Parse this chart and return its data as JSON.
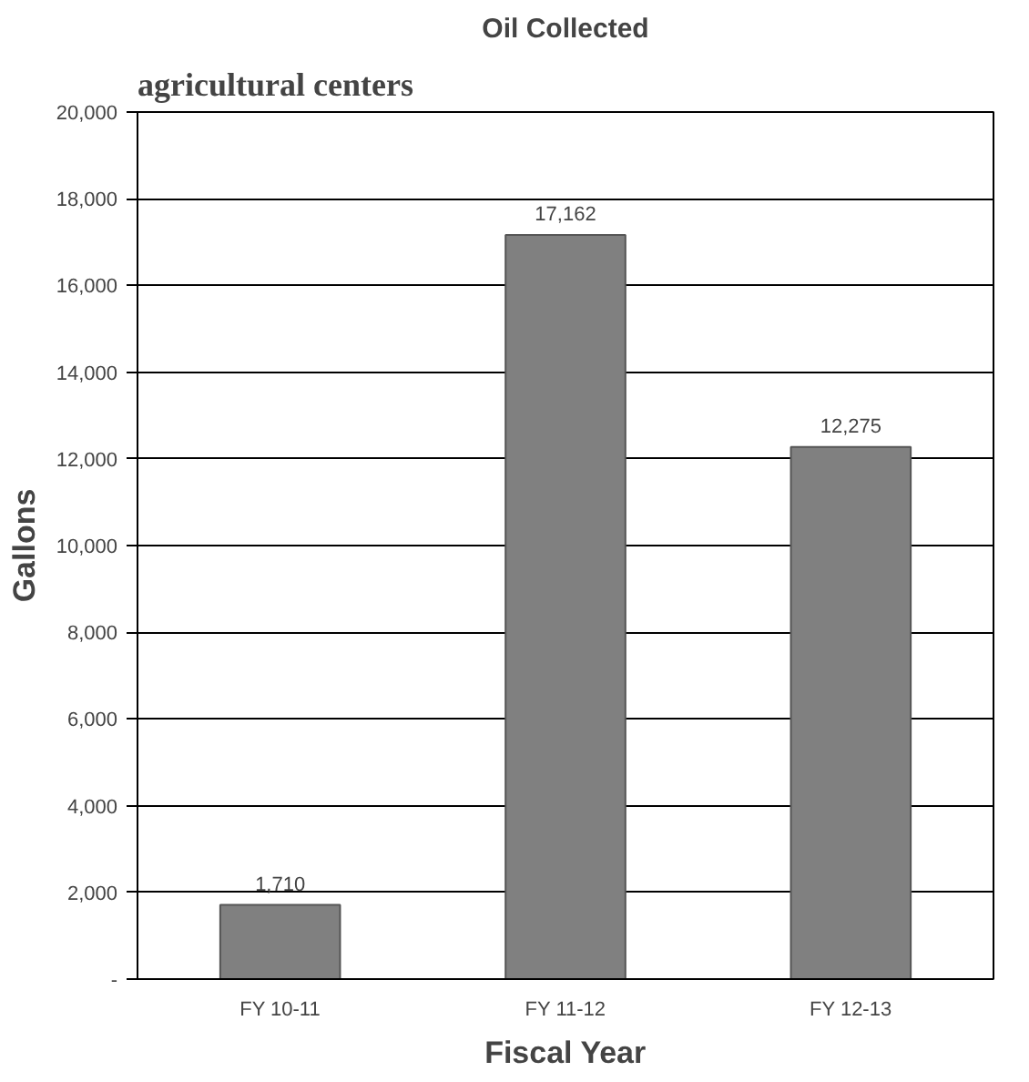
{
  "chart_data": {
    "type": "bar",
    "title": "Oil Collected",
    "xlabel": "Fiscal Year",
    "ylabel": "Gallons",
    "annotations": [
      "agricultural centers"
    ],
    "categories": [
      "FY 10-11",
      "FY 11-12",
      "FY 12-13"
    ],
    "values": [
      1710,
      17162,
      12275
    ],
    "value_labels": [
      "1,710",
      "17,162",
      "12,275"
    ],
    "color": "#808080",
    "ylim": [
      0,
      20000
    ],
    "yticks": [
      {
        "value": 0,
        "label": "-"
      },
      {
        "value": 2000,
        "label": "2,000"
      },
      {
        "value": 4000,
        "label": "4,000"
      },
      {
        "value": 6000,
        "label": "6,000"
      },
      {
        "value": 8000,
        "label": "8,000"
      },
      {
        "value": 10000,
        "label": "10,000"
      },
      {
        "value": 12000,
        "label": "12,000"
      },
      {
        "value": 14000,
        "label": "14,000"
      },
      {
        "value": 16000,
        "label": "16,000"
      },
      {
        "value": 18000,
        "label": "18,000"
      },
      {
        "value": 20000,
        "label": "20,000"
      }
    ],
    "grid": "y"
  }
}
